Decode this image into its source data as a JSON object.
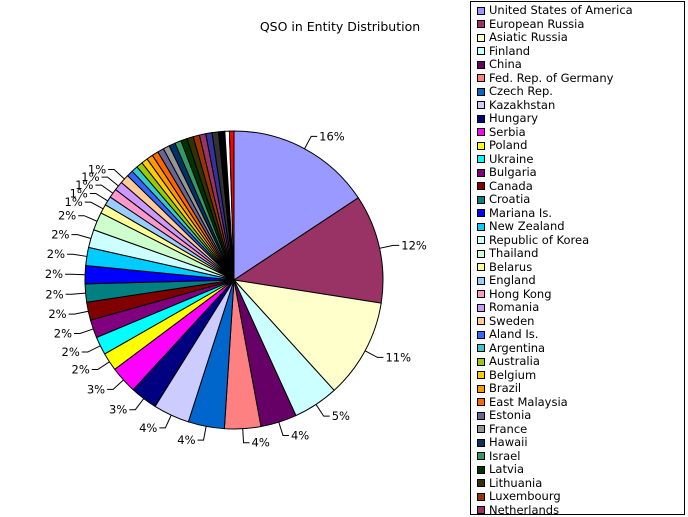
{
  "chart_data": {
    "type": "pie",
    "title": "QSO in Entity Distribution",
    "legend_position": "right",
    "slices": [
      {
        "label": "United States of America",
        "value": 16,
        "pct_label": "16%",
        "color": "#9999ff"
      },
      {
        "label": "European Russia",
        "value": 12,
        "pct_label": "12%",
        "color": "#993366"
      },
      {
        "label": "Asiatic Russia",
        "value": 11,
        "pct_label": "11%",
        "color": "#ffffcc"
      },
      {
        "label": "Finland",
        "value": 5,
        "pct_label": "5%",
        "color": "#ccffff"
      },
      {
        "label": "China",
        "value": 4,
        "pct_label": "4%",
        "color": "#660066"
      },
      {
        "label": "Fed. Rep. of Germany",
        "value": 4,
        "pct_label": "4%",
        "color": "#ff8080"
      },
      {
        "label": "Czech Rep.",
        "value": 4,
        "pct_label": "4%",
        "color": "#0066cc"
      },
      {
        "label": "Kazakhstan",
        "value": 4,
        "pct_label": "4%",
        "color": "#ccccff"
      },
      {
        "label": "Hungary",
        "value": 3,
        "pct_label": "3%",
        "color": "#000080"
      },
      {
        "label": "Serbia",
        "value": 3,
        "pct_label": "3%",
        "color": "#ff00ff"
      },
      {
        "label": "Poland",
        "value": 2,
        "pct_label": "2%",
        "color": "#ffff00"
      },
      {
        "label": "Ukraine",
        "value": 2,
        "pct_label": "2%",
        "color": "#00ffff"
      },
      {
        "label": "Bulgaria",
        "value": 2,
        "pct_label": "2%",
        "color": "#800080"
      },
      {
        "label": "Canada",
        "value": 2,
        "pct_label": "2%",
        "color": "#800000"
      },
      {
        "label": "Croatia",
        "value": 2,
        "pct_label": "2%",
        "color": "#008080"
      },
      {
        "label": "Mariana Is.",
        "value": 2,
        "pct_label": "2%",
        "color": "#0000ff"
      },
      {
        "label": "New Zealand",
        "value": 2,
        "pct_label": "2%",
        "color": "#00ccff"
      },
      {
        "label": "Republic of Korea",
        "value": 2,
        "pct_label": "2%",
        "color": "#ccffff"
      },
      {
        "label": "Thailand",
        "value": 2,
        "pct_label": "2%",
        "color": "#ccffcc"
      },
      {
        "label": "Belarus",
        "value": 1,
        "pct_label": "1%",
        "color": "#ffff99"
      },
      {
        "label": "England",
        "value": 1,
        "pct_label": "1%",
        "color": "#99ccff"
      },
      {
        "label": "Hong Kong",
        "value": 1,
        "pct_label": "1%",
        "color": "#ff99cc"
      },
      {
        "label": "Romania",
        "value": 1,
        "pct_label": "1%",
        "color": "#cc99ff"
      },
      {
        "label": "Sweden",
        "value": 1,
        "pct_label": "1%",
        "color": "#ffcc99"
      },
      {
        "label": "Aland Is.",
        "value": 0.7,
        "pct_label": "",
        "color": "#3366ff"
      },
      {
        "label": "Argentina",
        "value": 0.7,
        "pct_label": "",
        "color": "#33cccc"
      },
      {
        "label": "Australia",
        "value": 0.7,
        "pct_label": "",
        "color": "#99cc00"
      },
      {
        "label": "Belgium",
        "value": 0.7,
        "pct_label": "",
        "color": "#ffcc00"
      },
      {
        "label": "Brazil",
        "value": 0.7,
        "pct_label": "",
        "color": "#ff9900"
      },
      {
        "label": "East Malaysia",
        "value": 0.7,
        "pct_label": "",
        "color": "#ff6600"
      },
      {
        "label": "Estonia",
        "value": 0.7,
        "pct_label": "",
        "color": "#666699"
      },
      {
        "label": "France",
        "value": 0.7,
        "pct_label": "",
        "color": "#969696"
      },
      {
        "label": "Hawaii",
        "value": 0.7,
        "pct_label": "",
        "color": "#003366"
      },
      {
        "label": "Israel",
        "value": 0.7,
        "pct_label": "",
        "color": "#339966"
      },
      {
        "label": "Latvia",
        "value": 0.7,
        "pct_label": "",
        "color": "#003300"
      },
      {
        "label": "Lithuania",
        "value": 0.7,
        "pct_label": "",
        "color": "#333300"
      },
      {
        "label": "Luxembourg",
        "value": 0.7,
        "pct_label": "",
        "color": "#993300"
      },
      {
        "label": "Netherlands",
        "value": 0.7,
        "pct_label": "",
        "color": "#993366"
      },
      {
        "label": "",
        "value": 0.7,
        "pct_label": "",
        "color": "#333399"
      },
      {
        "label": "",
        "value": 0.7,
        "pct_label": "",
        "color": "#333333"
      },
      {
        "label": "",
        "value": 0.7,
        "pct_label": "",
        "color": "#000000"
      },
      {
        "label": "",
        "value": 0.5,
        "pct_label": "",
        "color": "#ffffff"
      },
      {
        "label": "",
        "value": 0.5,
        "pct_label": "",
        "color": "#ff0000"
      }
    ]
  }
}
